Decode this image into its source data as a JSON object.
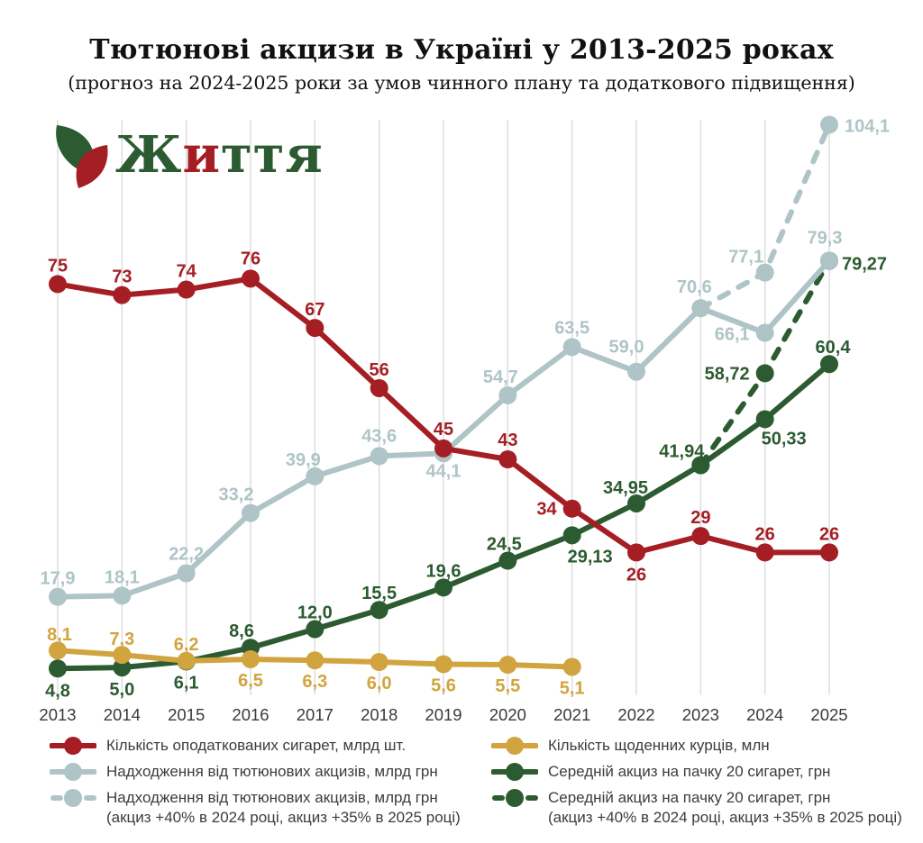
{
  "title": "Тютюнові акцизи в Україні у 2013-2025 роках",
  "subtitle": "(прогноз на 2024-2025 роки за умов чинного плану та додаткового підвищення)",
  "logo": {
    "parts": [
      {
        "text": "Ж",
        "color": "#2C5B31"
      },
      {
        "text": "и",
        "color": "#A51E24"
      },
      {
        "text": "ття",
        "color": "#2C5B31"
      }
    ]
  },
  "colors": {
    "red": "#A51E24",
    "pale_blue": "#AFC4C7",
    "green": "#2C5B31",
    "gold": "#D1A43F",
    "grid": "#DBDBDB",
    "axis_text": "#3A3A3A",
    "legend_text": "#3C3C3C",
    "title_text": "#111111"
  },
  "chart_data": {
    "type": "line",
    "x_min": 2013,
    "x_max": 2025,
    "x_ticks": [
      "2013",
      "2014",
      "2015",
      "2016",
      "2017",
      "2018",
      "2019",
      "2020",
      "2021",
      "2022",
      "2023",
      "2024",
      "2025"
    ],
    "ylim": [
      0,
      105
    ],
    "grid": "vertical-only",
    "legend_position": "bottom-two-columns",
    "series": [
      {
        "id": "revenue-forecast",
        "name": "Надходження від тютюнових акцизів, млрд грн (акциз +40% в 2024 році, акциз +35% в 2025 році)",
        "color": "pale_blue",
        "dashed": true,
        "points": [
          {
            "year": 2023,
            "value": 70.6,
            "label": ""
          },
          {
            "year": 2024,
            "value": 77.1,
            "label": "77,1",
            "dx": -21,
            "dy": -11
          },
          {
            "year": 2025,
            "value": 104.1,
            "label": "104,1",
            "dx": 17,
            "dy": 8,
            "anchor": "start"
          }
        ]
      },
      {
        "id": "excise-forecast",
        "name": "Середній акциз на пачку 20 сигарет, грн (акциз +40% в 2024 році, акциз +35% в 2025 році)",
        "color": "green",
        "dashed": true,
        "points": [
          {
            "year": 2023,
            "value": 41.94,
            "label": ""
          },
          {
            "year": 2024,
            "value": 58.72,
            "label": "58,72",
            "dx": -17,
            "dy": 7,
            "anchor": "end"
          },
          {
            "year": 2025,
            "value": 79.27,
            "label": "79,27",
            "dx": 14,
            "dy": 10,
            "anchor": "start"
          }
        ]
      },
      {
        "id": "revenue",
        "name": "Надходження від тютюнових акцизів, млрд грн",
        "color": "pale_blue",
        "dashed": false,
        "points": [
          {
            "year": 2013,
            "value": 17.9,
            "label": "17,9",
            "dx": 0,
            "dy": -14
          },
          {
            "year": 2014,
            "value": 18.1,
            "label": "18,1",
            "dx": 0,
            "dy": -14
          },
          {
            "year": 2015,
            "value": 22.2,
            "label": "22,2",
            "dx": 0,
            "dy": -15
          },
          {
            "year": 2016,
            "value": 33.2,
            "label": "33,2",
            "dx": -16,
            "dy": -14
          },
          {
            "year": 2017,
            "value": 39.9,
            "label": "39,9",
            "dx": -13,
            "dy": -12
          },
          {
            "year": 2018,
            "value": 43.6,
            "label": "43,6",
            "dx": 0,
            "dy": -16
          },
          {
            "year": 2019,
            "value": 44.1,
            "label": "44,1",
            "dx": 0,
            "dy": 26
          },
          {
            "year": 2020,
            "value": 54.7,
            "label": "54,7",
            "dx": -8,
            "dy": -14
          },
          {
            "year": 2021,
            "value": 63.5,
            "label": "63,5",
            "dx": 0,
            "dy": -15
          },
          {
            "year": 2022,
            "value": 59.0,
            "label": "59,0",
            "dx": -11,
            "dy": -21
          },
          {
            "year": 2023,
            "value": 70.6,
            "label": "70,6",
            "dx": -7,
            "dy": -17
          },
          {
            "year": 2024,
            "value": 66.1,
            "label": "66,1",
            "dx": -17,
            "dy": 8,
            "anchor": "end"
          },
          {
            "year": 2025,
            "value": 79.3,
            "label": "79,3",
            "dx": -5,
            "dy": -19
          }
        ]
      },
      {
        "id": "excise",
        "name": "Середній акциз на пачку 20 сигарет, грн",
        "color": "green",
        "dashed": false,
        "points": [
          {
            "year": 2013,
            "value": 4.8,
            "label": "4,8",
            "dx": 0,
            "dy": 31
          },
          {
            "year": 2014,
            "value": 5.0,
            "label": "5,0",
            "dx": 0,
            "dy": 31
          },
          {
            "year": 2015,
            "value": 6.1,
            "label": "6,1",
            "dx": 0,
            "dy": 30
          },
          {
            "year": 2016,
            "value": 8.6,
            "label": "8,6",
            "dx": -10,
            "dy": -12
          },
          {
            "year": 2017,
            "value": 12.0,
            "label": "12,0",
            "dx": 0,
            "dy": -12
          },
          {
            "year": 2018,
            "value": 15.5,
            "label": "15,5",
            "dx": 0,
            "dy": -12
          },
          {
            "year": 2019,
            "value": 19.6,
            "label": "19,6",
            "dx": 0,
            "dy": -12
          },
          {
            "year": 2020,
            "value": 24.5,
            "label": "24,5",
            "dx": -4,
            "dy": -12
          },
          {
            "year": 2021,
            "value": 29.13,
            "label": "29,13",
            "dx": 20,
            "dy": 30
          },
          {
            "year": 2022,
            "value": 34.95,
            "label": "34,95",
            "dx": -12,
            "dy": -11
          },
          {
            "year": 2023,
            "value": 41.94,
            "label": "41,94",
            "dx": -21,
            "dy": -9
          },
          {
            "year": 2024,
            "value": 50.33,
            "label": "50,33",
            "dx": 21,
            "dy": 28
          },
          {
            "year": 2025,
            "value": 60.4,
            "label": "60,4",
            "dx": 4,
            "dy": -12
          }
        ]
      },
      {
        "id": "smokers",
        "name": "Кількість щоденних курців, млн",
        "color": "gold",
        "dashed": false,
        "points": [
          {
            "year": 2013,
            "value": 8.1,
            "label": "8,1",
            "dx": 2,
            "dy": -11
          },
          {
            "year": 2014,
            "value": 7.3,
            "label": "7,3",
            "dx": 0,
            "dy": -11
          },
          {
            "year": 2015,
            "value": 6.2,
            "label": "6,2",
            "dx": 0,
            "dy": -12
          },
          {
            "year": 2016,
            "value": 6.5,
            "label": "6,5",
            "dx": 0,
            "dy": 30
          },
          {
            "year": 2017,
            "value": 6.3,
            "label": "6,3",
            "dx": 0,
            "dy": 30
          },
          {
            "year": 2018,
            "value": 6.0,
            "label": "6,0",
            "dx": 0,
            "dy": 30
          },
          {
            "year": 2019,
            "value": 5.6,
            "label": "5,6",
            "dx": 0,
            "dy": 30
          },
          {
            "year": 2020,
            "value": 5.5,
            "label": "5,5",
            "dx": 0,
            "dy": 30
          },
          {
            "year": 2021,
            "value": 5.1,
            "label": "5,1",
            "dx": 0,
            "dy": 30
          }
        ]
      },
      {
        "id": "cigarettes",
        "name": "Кількість оподаткованих сигарет, млрд шт.",
        "color": "red",
        "dashed": false,
        "points": [
          {
            "year": 2013,
            "value": 75,
            "label": "75",
            "dx": 0,
            "dy": -14
          },
          {
            "year": 2014,
            "value": 73,
            "label": "73",
            "dx": 0,
            "dy": -14
          },
          {
            "year": 2015,
            "value": 74,
            "label": "74",
            "dx": 0,
            "dy": -14
          },
          {
            "year": 2016,
            "value": 76,
            "label": "76",
            "dx": 0,
            "dy": -16
          },
          {
            "year": 2017,
            "value": 67,
            "label": "67",
            "dx": 0,
            "dy": -14
          },
          {
            "year": 2018,
            "value": 56,
            "label": "56",
            "dx": 0,
            "dy": -14
          },
          {
            "year": 2019,
            "value": 45,
            "label": "45",
            "dx": 0,
            "dy": -15
          },
          {
            "year": 2020,
            "value": 43,
            "label": "43",
            "dx": 0,
            "dy": -15
          },
          {
            "year": 2021,
            "value": 34,
            "label": "34",
            "dx": -17,
            "dy": 7,
            "anchor": "end"
          },
          {
            "year": 2022,
            "value": 26,
            "label": "26",
            "dx": 0,
            "dy": 31
          },
          {
            "year": 2023,
            "value": 29,
            "label": "29",
            "dx": 0,
            "dy": -14
          },
          {
            "year": 2024,
            "value": 26,
            "label": "26",
            "dx": 0,
            "dy": -14
          },
          {
            "year": 2025,
            "value": 26,
            "label": "26",
            "dx": 0,
            "dy": -14
          }
        ]
      }
    ],
    "legend": {
      "left": [
        {
          "label": "Кількість оподаткованих сигарет, млрд шт.",
          "label2": "",
          "color": "red",
          "dashed": false
        },
        {
          "label": "Надходження від тютюнових акцизів, млрд грн",
          "label2": "",
          "color": "pale_blue",
          "dashed": false
        },
        {
          "label": "Надходження від тютюнових акцизів, млрд грн",
          "label2": "(акциз +40% в 2024 році, акциз +35% в 2025 році)",
          "color": "pale_blue",
          "dashed": true
        }
      ],
      "right": [
        {
          "label": "Кількість щоденних курців, млн",
          "label2": "",
          "color": "gold",
          "dashed": false
        },
        {
          "label": "Середній акциз на пачку 20 сигарет, грн",
          "label2": "",
          "color": "green",
          "dashed": false
        },
        {
          "label": "Середній акциз на пачку 20 сигарет, грн",
          "label2": "(акциз +40% в 2024 році, акциз +35% в 2025 році)",
          "color": "green",
          "dashed": true
        }
      ]
    }
  }
}
